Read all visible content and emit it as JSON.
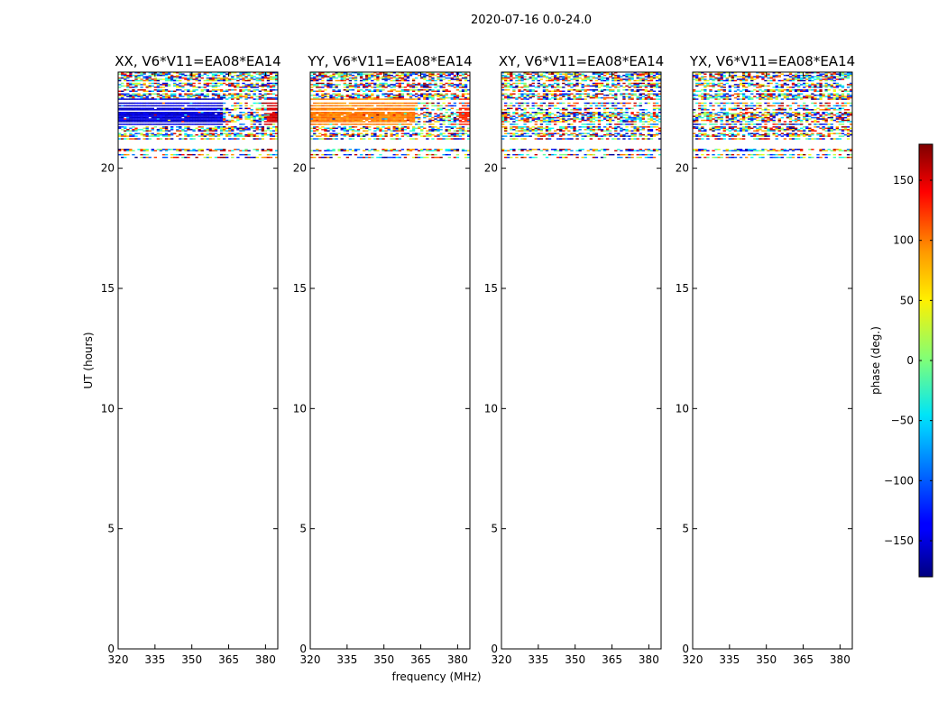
{
  "chart_data": {
    "type": "heatmap",
    "suptitle": "2020-07-16 0.0-24.0",
    "xlabel": "frequency (MHz)",
    "ylabel": "UT (hours)",
    "xlim": [
      320,
      385
    ],
    "ylim": [
      0,
      24
    ],
    "xticks": [
      "320",
      "335",
      "350",
      "365",
      "380"
    ],
    "yticks": [
      "0",
      "5",
      "10",
      "15",
      "20"
    ],
    "colorbar": {
      "label": "phase (deg.)",
      "range": [
        -180,
        180
      ],
      "ticks": [
        "150",
        "100",
        "50",
        "0",
        "−50",
        "−100",
        "−150"
      ],
      "colormap": "jet"
    },
    "data_time_range_hours": [
      20.2,
      24.0
    ],
    "panels": [
      {
        "title": "XX, V6*V11=EA08*EA14",
        "mean_phase_low_freq": -150,
        "mean_phase_high_freq": 150,
        "coherent": true
      },
      {
        "title": "YY, V6*V11=EA08*EA14",
        "mean_phase_low_freq": 90,
        "mean_phase_high_freq": 120,
        "coherent": true
      },
      {
        "title": "XY, V6*V11=EA08*EA14",
        "coherent": false
      },
      {
        "title": "YX, V6*V11=EA08*EA14",
        "coherent": false
      }
    ]
  }
}
